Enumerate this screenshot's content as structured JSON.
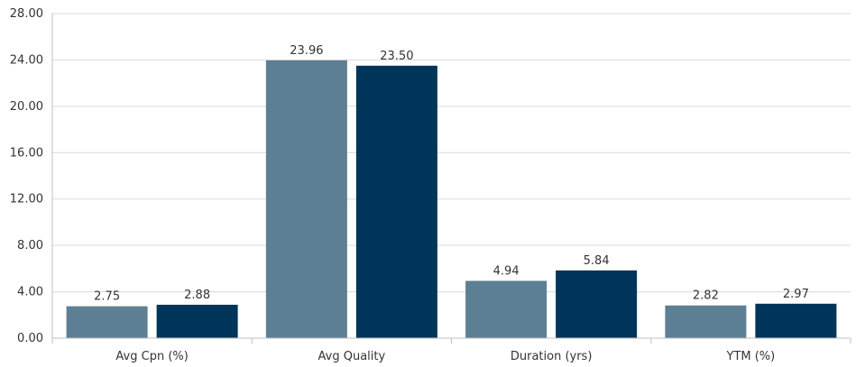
{
  "chart_data": {
    "type": "bar",
    "categories": [
      "Avg Cpn (%)",
      "Avg Quality",
      "Duration (yrs)",
      "YTM (%)"
    ],
    "series": [
      {
        "values": [
          2.75,
          23.96,
          4.94,
          2.82
        ],
        "color": "#5d7f94"
      },
      {
        "values": [
          2.88,
          23.5,
          5.84,
          2.97
        ],
        "color": "#003459"
      }
    ],
    "data_labels": [
      [
        "2.75",
        "23.96",
        "4.94",
        "2.82"
      ],
      [
        "2.88",
        "23.50",
        "5.84",
        "2.97"
      ]
    ],
    "y_ticks": [
      "0.00",
      "4.00",
      "8.00",
      "12.00",
      "16.00",
      "20.00",
      "24.00",
      "28.00"
    ],
    "ylim": [
      0,
      28
    ],
    "grid": true,
    "legend": "none",
    "title": "",
    "xlabel": "",
    "ylabel": ""
  }
}
